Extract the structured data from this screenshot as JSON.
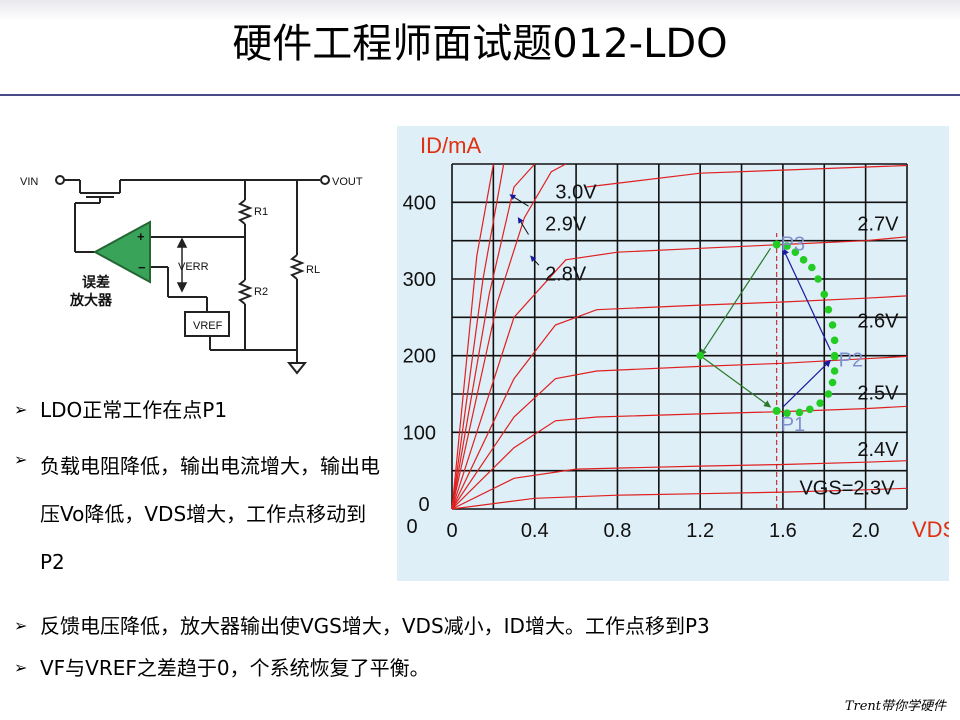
{
  "slide": {
    "title": "硬件工程师面试题012-LDO",
    "watermark": "Trent带你学硬件"
  },
  "circuit": {
    "vin": "VIN",
    "vout": "VOUT",
    "r1": "R1",
    "r2": "R2",
    "rl": "RL",
    "verr": "VERR",
    "vref": "VREF",
    "amp_label_1": "误差",
    "amp_label_2": "放大器",
    "amp_plus": "+",
    "amp_minus": "−"
  },
  "bullets_left": [
    "LDO正常工作在点P1",
    "负载电阻降低，输出电流增大，输出电压Vo降低，VDS增大，工作点移动到P2"
  ],
  "bullets_bottom": [
    "反馈电压降低，放大器输出使VGS增大，VDS减小，ID增大。工作点移到P3",
    "VF与VREF之差趋于0，个系统恢复了平衡。"
  ],
  "chart_data": {
    "type": "line",
    "ylabel": "ID/mA",
    "xlabel": "VDS/V",
    "xlim": [
      0,
      2.2
    ],
    "ylim": [
      0,
      450
    ],
    "x_ticks": [
      "0",
      "0.4",
      "0.8",
      "1.2",
      "1.6",
      "2.0"
    ],
    "y_ticks": [
      "0",
      "100",
      "200",
      "300",
      "400"
    ],
    "origin_label": "0",
    "grid": true,
    "series": [
      {
        "name": "VGS=2.3V",
        "points": [
          [
            0,
            0
          ],
          [
            0.4,
            14
          ],
          [
            0.8,
            18
          ],
          [
            1.2,
            20
          ],
          [
            1.6,
            22
          ],
          [
            2.0,
            25
          ],
          [
            2.2,
            27
          ]
        ]
      },
      {
        "name": "2.4V",
        "points": [
          [
            0,
            0
          ],
          [
            0.3,
            40
          ],
          [
            0.6,
            52
          ],
          [
            1.2,
            56
          ],
          [
            1.6,
            58
          ],
          [
            2.0,
            61
          ],
          [
            2.2,
            63
          ]
        ]
      },
      {
        "name": "2.5V",
        "points": [
          [
            0,
            0
          ],
          [
            0.3,
            80
          ],
          [
            0.5,
            115
          ],
          [
            0.7,
            120
          ],
          [
            1.2,
            124
          ],
          [
            1.6,
            127
          ],
          [
            2.0,
            131
          ],
          [
            2.2,
            134
          ]
        ]
      },
      {
        "name": "2.6V",
        "points": [
          [
            0,
            0
          ],
          [
            0.3,
            120
          ],
          [
            0.5,
            170
          ],
          [
            0.7,
            180
          ],
          [
            1.2,
            186
          ],
          [
            1.6,
            190
          ],
          [
            2.0,
            196
          ],
          [
            2.2,
            199
          ]
        ]
      },
      {
        "name": "2.7V",
        "points": [
          [
            0,
            0
          ],
          [
            0.3,
            170
          ],
          [
            0.5,
            240
          ],
          [
            0.7,
            260
          ],
          [
            1.2,
            266
          ],
          [
            1.6,
            270
          ],
          [
            2.0,
            275
          ],
          [
            2.2,
            278
          ]
        ]
      },
      {
        "name": "2.8V",
        "points": [
          [
            0,
            0
          ],
          [
            0.3,
            250
          ],
          [
            0.55,
            325
          ],
          [
            0.8,
            335
          ],
          [
            1.2,
            340
          ],
          [
            1.6,
            345
          ],
          [
            2.0,
            350
          ],
          [
            2.2,
            355
          ]
        ]
      },
      {
        "name": "2.9V",
        "points": [
          [
            0,
            0
          ],
          [
            0.22,
            270
          ],
          [
            0.35,
            380
          ],
          [
            0.48,
            440
          ],
          [
            0.55,
            450
          ]
        ]
      },
      {
        "name": "3.0V",
        "points": [
          [
            0,
            0
          ],
          [
            0.18,
            280
          ],
          [
            0.3,
            420
          ],
          [
            0.4,
            450
          ]
        ]
      }
    ],
    "extra_curves": [
      {
        "points": [
          [
            0,
            0
          ],
          [
            0.15,
            300
          ],
          [
            0.25,
            450
          ]
        ]
      },
      {
        "points": [
          [
            0,
            0
          ],
          [
            0.12,
            330
          ],
          [
            0.2,
            450
          ]
        ]
      },
      {
        "points": [
          [
            0.65,
            420
          ],
          [
            1.2,
            438
          ],
          [
            1.6,
            442
          ],
          [
            2.2,
            448
          ]
        ]
      }
    ],
    "curve_labels": [
      {
        "text": "3.0V",
        "x": 0.5,
        "y": 405
      },
      {
        "text": "2.9V",
        "x": 0.45,
        "y": 363
      },
      {
        "text": "2.8V",
        "x": 0.45,
        "y": 298
      },
      {
        "text": "2.7V",
        "x": 1.96,
        "y": 363
      },
      {
        "text": "2.6V",
        "x": 1.96,
        "y": 237
      },
      {
        "text": "2.5V",
        "x": 1.96,
        "y": 143
      },
      {
        "text": "2.4V",
        "x": 1.96,
        "y": 69
      },
      {
        "text": "VGS=2.3V",
        "x": 1.68,
        "y": 19
      }
    ],
    "points": [
      {
        "name": "P1",
        "x": 1.57,
        "y": 128
      },
      {
        "name": "P2",
        "x": 1.85,
        "y": 199
      },
      {
        "name": "P3",
        "x": 1.57,
        "y": 345
      }
    ],
    "vline_x": 1.57,
    "colors": {
      "curve": "#e02020",
      "dots": "#22cc22",
      "blue": "#1a1aa0",
      "green_arrow": "#2a7a2a",
      "point_label": "#7f8fd0",
      "axis_label": "#e03010"
    }
  }
}
